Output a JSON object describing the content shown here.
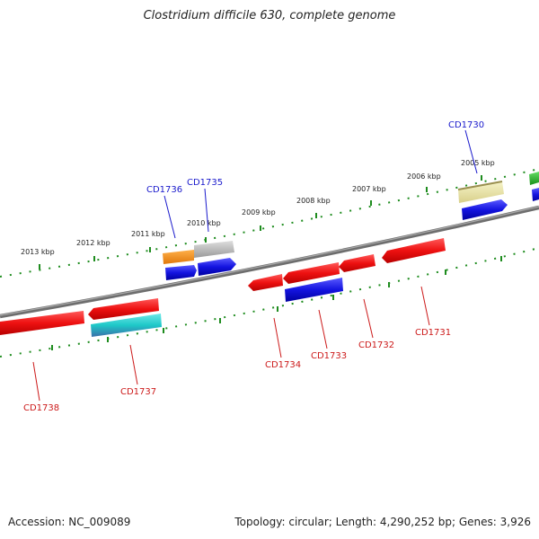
{
  "title": "Clostridium difficile 630, complete genome",
  "footer": {
    "accession": "Accession: NC_009089",
    "summary": "Topology: circular; Length: 4,290,252 bp; Genes: 3,926"
  },
  "ruler_labels": [
    "2013 kbp",
    "2012 kbp",
    "2011 kbp",
    "2010 kbp",
    "2009 kbp",
    "2008 kbp",
    "2007 kbp",
    "2006 kbp",
    "2005 kbp"
  ],
  "gene_labels": {
    "top": [
      "CD1736",
      "CD1735",
      "CD1730"
    ],
    "bottom": [
      "CD1738",
      "CD1737",
      "CD1734",
      "CD1733",
      "CD1732",
      "CD1731"
    ]
  },
  "colors": {
    "backbone": "#808080",
    "tick": "#1e8c1e",
    "label_forward": "#1a1acc",
    "label_reverse": "#cc1a1a",
    "red_gene": "#ee1111",
    "blue_gene": "#1414e0",
    "orange_gene": "#f58c0f",
    "gray_gene": "#b4b4b4",
    "yellow_gene": "#ebe6a0",
    "cyan_gene": "#1ec8c8",
    "green_gene": "#22bb22"
  }
}
